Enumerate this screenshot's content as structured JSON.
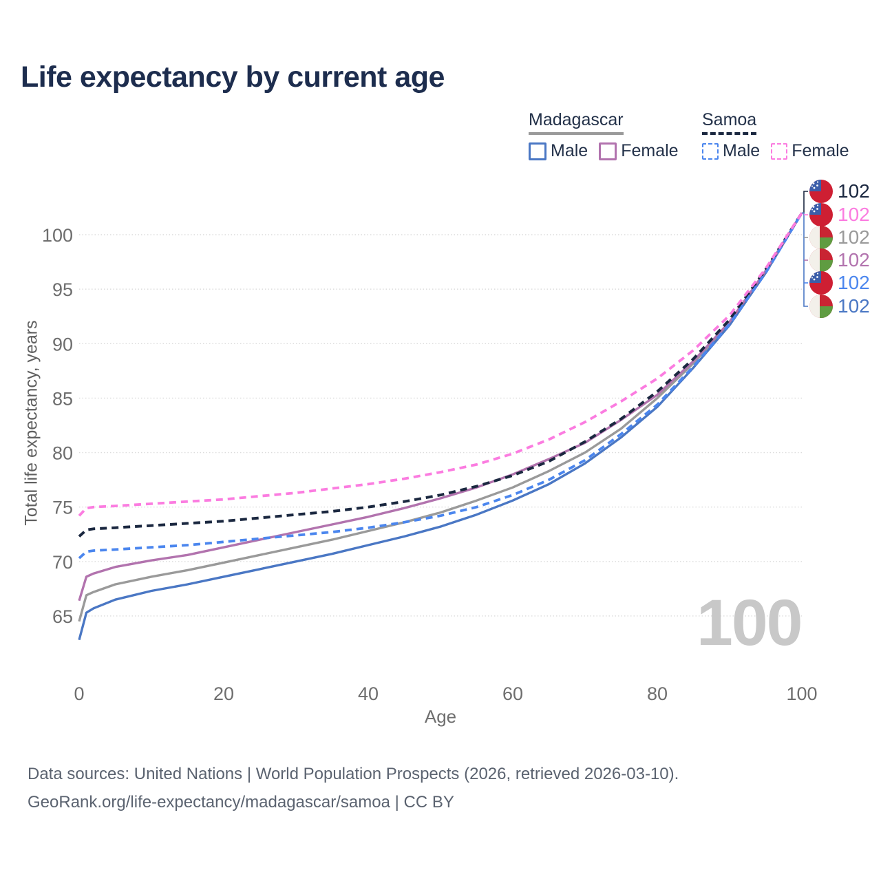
{
  "title": "Life expectancy by current age",
  "watermark": "100",
  "legend": {
    "groups": [
      {
        "name": "Madagascar",
        "style": "solid",
        "items": [
          {
            "label": "Male"
          },
          {
            "label": "Female"
          }
        ]
      },
      {
        "name": "Samoa",
        "style": "dashed",
        "items": [
          {
            "label": "Male"
          },
          {
            "label": "Female"
          }
        ]
      }
    ]
  },
  "footer": {
    "line1": "Data sources: United Nations | World Population Prospects (2026, retrieved 2026-03-10).",
    "line2": "GeoRank.org/life-expectancy/madagascar/samoa | CC BY"
  },
  "colors": {
    "title": "#1d2d4e",
    "axis_text": "#6e6e6e",
    "grid": "#dcdcdc",
    "watermark": "#c8c8c8",
    "legend_text": "#233149",
    "madagascar_both": "#9a9a9a",
    "madagascar_male": "#4a77c4",
    "madagascar_female": "#b273ae",
    "samoa_both": "#1b2840",
    "samoa_male": "#4b86ee",
    "samoa_female": "#fb7ce0",
    "flag_samoa_red": "#CE1F33",
    "flag_samoa_blue": "#3C5EA9",
    "flag_mada_white": "#F3F0EA",
    "flag_mada_red": "#C92433",
    "flag_mada_green": "#5F9C41"
  },
  "chart_data": {
    "type": "line",
    "title": "Life expectancy by current age",
    "xlabel": "Age",
    "ylabel": "Total life expectancy, years",
    "xticks": [
      0,
      20,
      40,
      60,
      80,
      100
    ],
    "yticks": [
      65,
      70,
      75,
      80,
      85,
      90,
      95,
      100
    ],
    "xlim": [
      0,
      100
    ],
    "ylim": [
      60,
      104.5
    ],
    "grid": "horizontal-dotted",
    "legend_position": "top-right",
    "x": [
      0,
      1,
      2,
      5,
      10,
      15,
      20,
      25,
      30,
      35,
      40,
      45,
      50,
      55,
      60,
      65,
      70,
      75,
      80,
      85,
      90,
      95,
      100
    ],
    "series": [
      {
        "id": "madagascar-both",
        "name": "Madagascar Both sexes",
        "country": "Madagascar",
        "sex": "both",
        "color": "#9a9a9a",
        "dashed": false,
        "width": 3.4,
        "flag": "madagascar",
        "end_label": "102",
        "values": [
          64.5,
          66.9,
          67.2,
          67.9,
          68.6,
          69.2,
          69.9,
          70.6,
          71.3,
          72.0,
          72.8,
          73.6,
          74.5,
          75.6,
          76.8,
          78.3,
          80.0,
          82.2,
          85.0,
          88.2,
          91.9,
          96.6,
          102
        ]
      },
      {
        "id": "madagascar-male",
        "name": "Madagascar Male",
        "country": "Madagascar",
        "sex": "male",
        "color": "#4a77c4",
        "dashed": false,
        "width": 3.4,
        "flag": "madagascar",
        "end_label": "102",
        "values": [
          62.8,
          65.3,
          65.7,
          66.5,
          67.3,
          67.9,
          68.6,
          69.3,
          70.0,
          70.7,
          71.5,
          72.3,
          73.2,
          74.3,
          75.6,
          77.1,
          79.0,
          81.4,
          84.2,
          87.8,
          91.7,
          96.5,
          102
        ]
      },
      {
        "id": "madagascar-female",
        "name": "Madagascar Female",
        "country": "Madagascar",
        "sex": "female",
        "color": "#b273ae",
        "dashed": false,
        "width": 3.4,
        "flag": "madagascar",
        "end_label": "102",
        "values": [
          66.4,
          68.6,
          68.9,
          69.5,
          70.1,
          70.6,
          71.3,
          72.0,
          72.7,
          73.4,
          74.1,
          74.9,
          75.8,
          76.8,
          78.0,
          79.4,
          80.9,
          83.0,
          85.3,
          88.4,
          92.0,
          96.7,
          102
        ]
      },
      {
        "id": "samoa-both",
        "name": "Samoa Both sexes",
        "country": "Samoa",
        "sex": "both",
        "color": "#1b2840",
        "dashed": true,
        "width": 4,
        "flag": "samoa",
        "end_label": "102",
        "values": [
          72.3,
          72.9,
          73.0,
          73.1,
          73.3,
          73.5,
          73.7,
          74.0,
          74.3,
          74.6,
          75.0,
          75.5,
          76.1,
          76.9,
          77.9,
          79.2,
          81.0,
          83.1,
          85.6,
          88.6,
          92.2,
          96.8,
          102
        ]
      },
      {
        "id": "samoa-male",
        "name": "Samoa Male",
        "country": "Samoa",
        "sex": "male",
        "color": "#4b86ee",
        "dashed": true,
        "width": 3.8,
        "flag": "samoa",
        "end_label": "102",
        "values": [
          70.3,
          70.9,
          71.0,
          71.1,
          71.3,
          71.5,
          71.8,
          72.1,
          72.4,
          72.7,
          73.1,
          73.6,
          74.2,
          75.0,
          76.1,
          77.5,
          79.3,
          81.7,
          84.4,
          87.9,
          91.8,
          96.5,
          102
        ]
      },
      {
        "id": "samoa-female",
        "name": "Samoa Female",
        "country": "Samoa",
        "sex": "female",
        "color": "#fb7ce0",
        "dashed": true,
        "width": 3.8,
        "flag": "samoa",
        "end_label": "102",
        "values": [
          74.2,
          74.9,
          75.0,
          75.1,
          75.3,
          75.5,
          75.7,
          76.0,
          76.3,
          76.7,
          77.1,
          77.6,
          78.2,
          78.9,
          79.9,
          81.2,
          82.8,
          84.7,
          86.8,
          89.4,
          92.6,
          96.9,
          102
        ]
      }
    ],
    "end_label_order": [
      "samoa-both",
      "samoa-female",
      "madagascar-both",
      "madagascar-female",
      "samoa-male",
      "madagascar-male"
    ]
  }
}
